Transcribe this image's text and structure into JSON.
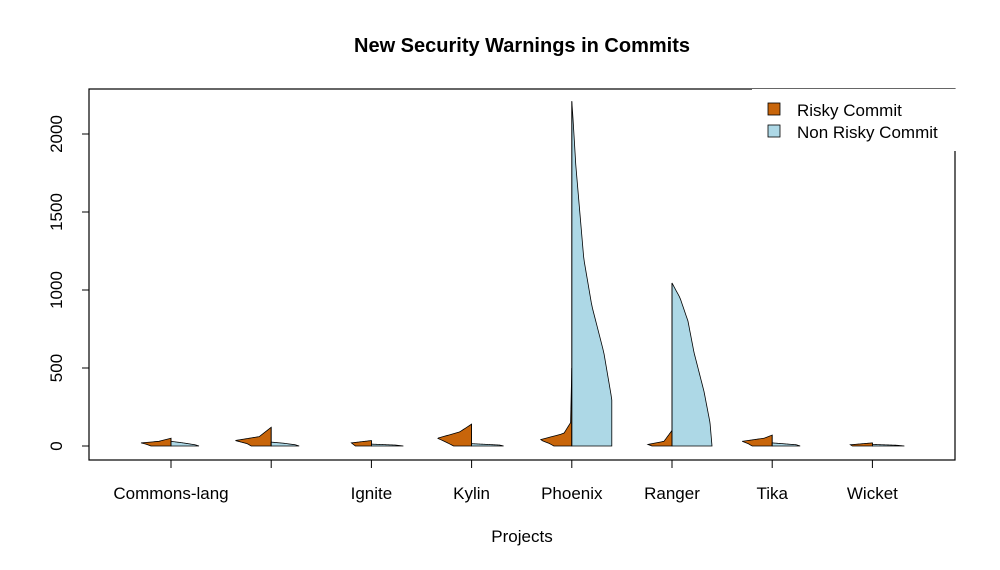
{
  "chart_data": {
    "type": "violin",
    "title": "New Security Warnings in Commits",
    "xlabel": "Projects",
    "ylabel": "",
    "ylim": [
      -90,
      2250
    ],
    "yticks": [
      0,
      500,
      1000,
      1500,
      2000
    ],
    "categories": [
      "Commons-lang",
      "",
      "Ignite",
      "Kylin",
      "Phoenix",
      "Ranger",
      "Tika",
      "Wicket"
    ],
    "legend": {
      "placement": "top-right"
    },
    "series": [
      {
        "name": "Risky Commit",
        "color": "#C8650A",
        "side": "left",
        "max": [
          50,
          120,
          35,
          140,
          500,
          100,
          70,
          20
        ],
        "widths": [
          [
            0,
            0.5
          ],
          [
            10,
            0.6
          ],
          [
            20,
            0.75
          ],
          [
            30,
            0.3
          ],
          [
            50,
            0
          ]
        ],
        "profiles": [
          [
            [
              0,
              0.5
            ],
            [
              10,
              0.6
            ],
            [
              20,
              0.75
            ],
            [
              30,
              0.3
            ],
            [
              50,
              0
            ]
          ],
          [
            [
              0,
              0.5
            ],
            [
              15,
              0.6
            ],
            [
              35,
              0.9
            ],
            [
              60,
              0.3
            ],
            [
              120,
              0
            ]
          ],
          [
            [
              0,
              0.4
            ],
            [
              10,
              0.45
            ],
            [
              20,
              0.5
            ],
            [
              35,
              0
            ]
          ],
          [
            [
              0,
              0.45
            ],
            [
              20,
              0.6
            ],
            [
              50,
              0.85
            ],
            [
              90,
              0.3
            ],
            [
              140,
              0
            ]
          ],
          [
            [
              0,
              0.45
            ],
            [
              15,
              0.55
            ],
            [
              40,
              0.8
            ],
            [
              80,
              0.2
            ],
            [
              150,
              0.03
            ],
            [
              500,
              0
            ]
          ],
          [
            [
              0,
              0.5
            ],
            [
              10,
              0.6
            ],
            [
              30,
              0.2
            ],
            [
              100,
              0
            ]
          ],
          [
            [
              0,
              0.5
            ],
            [
              15,
              0.6
            ],
            [
              30,
              0.75
            ],
            [
              50,
              0.2
            ],
            [
              70,
              0
            ]
          ],
          [
            [
              0,
              0.5
            ],
            [
              8,
              0.55
            ],
            [
              20,
              0
            ]
          ]
        ]
      },
      {
        "name": "Non Risky Commit",
        "color": "#ADD8E6",
        "side": "right",
        "max": [
          30,
          25,
          12,
          15,
          2210,
          1045,
          20,
          10
        ],
        "profiles": [
          [
            [
              0,
              0.7
            ],
            [
              8,
              0.6
            ],
            [
              20,
              0.3
            ],
            [
              30,
              0
            ]
          ],
          [
            [
              0,
              0.7
            ],
            [
              8,
              0.6
            ],
            [
              18,
              0.3
            ],
            [
              25,
              0
            ]
          ],
          [
            [
              0,
              0.8
            ],
            [
              6,
              0.6
            ],
            [
              12,
              0
            ]
          ],
          [
            [
              0,
              0.8
            ],
            [
              6,
              0.7
            ],
            [
              15,
              0
            ]
          ],
          [
            [
              0,
              1
            ],
            [
              300,
              1
            ],
            [
              600,
              0.8
            ],
            [
              900,
              0.5
            ],
            [
              1200,
              0.3
            ],
            [
              1500,
              0.2
            ],
            [
              1800,
              0.1
            ],
            [
              2100,
              0.03
            ],
            [
              2210,
              0
            ]
          ],
          [
            [
              0,
              1
            ],
            [
              150,
              0.95
            ],
            [
              350,
              0.8
            ],
            [
              600,
              0.55
            ],
            [
              800,
              0.4
            ],
            [
              950,
              0.2
            ],
            [
              1045,
              0
            ]
          ],
          [
            [
              0,
              0.7
            ],
            [
              8,
              0.6
            ],
            [
              20,
              0
            ]
          ],
          [
            [
              0,
              0.8
            ],
            [
              5,
              0.6
            ],
            [
              10,
              0
            ]
          ]
        ]
      }
    ]
  }
}
